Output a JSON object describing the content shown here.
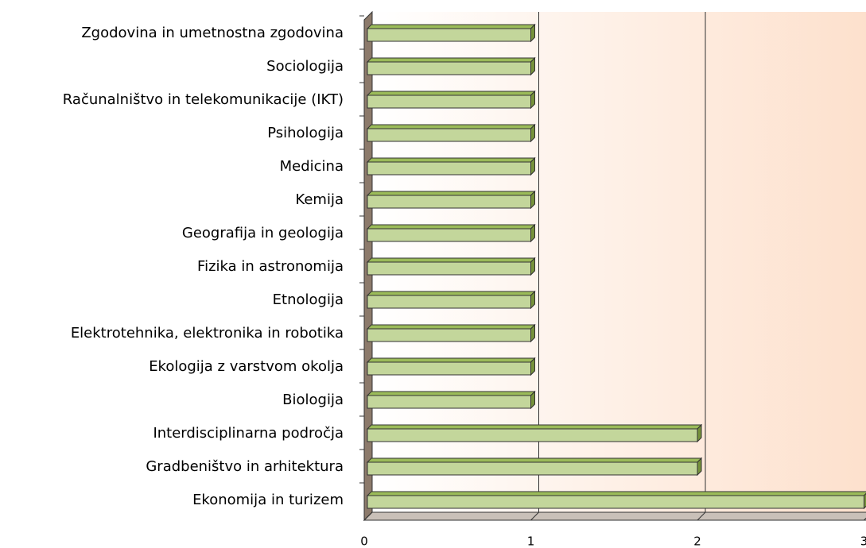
{
  "chart_data": {
    "type": "bar",
    "orientation": "horizontal",
    "categories": [
      "Zgodovina in umetnostna zgodovina",
      "Sociologija",
      "Računalništvo in telekomunikacije (IKT)",
      "Psihologija",
      "Medicina",
      "Kemija",
      "Geografija in geologija",
      "Fizika in astronomija",
      "Etnologija",
      "Elektrotehnika, elektronika in robotika",
      "Ekologija z varstvom okolja",
      "Biologija",
      "Interdisciplinarna področja",
      "Gradbeništvo in arhitektura",
      "Ekonomija in turizem"
    ],
    "values": [
      1,
      1,
      1,
      1,
      1,
      1,
      1,
      1,
      1,
      1,
      1,
      1,
      2,
      2,
      3
    ],
    "color": "#c3d69b",
    "xlim": [
      0,
      3
    ],
    "xticks": [
      0,
      1,
      2,
      3
    ],
    "grid": true
  }
}
